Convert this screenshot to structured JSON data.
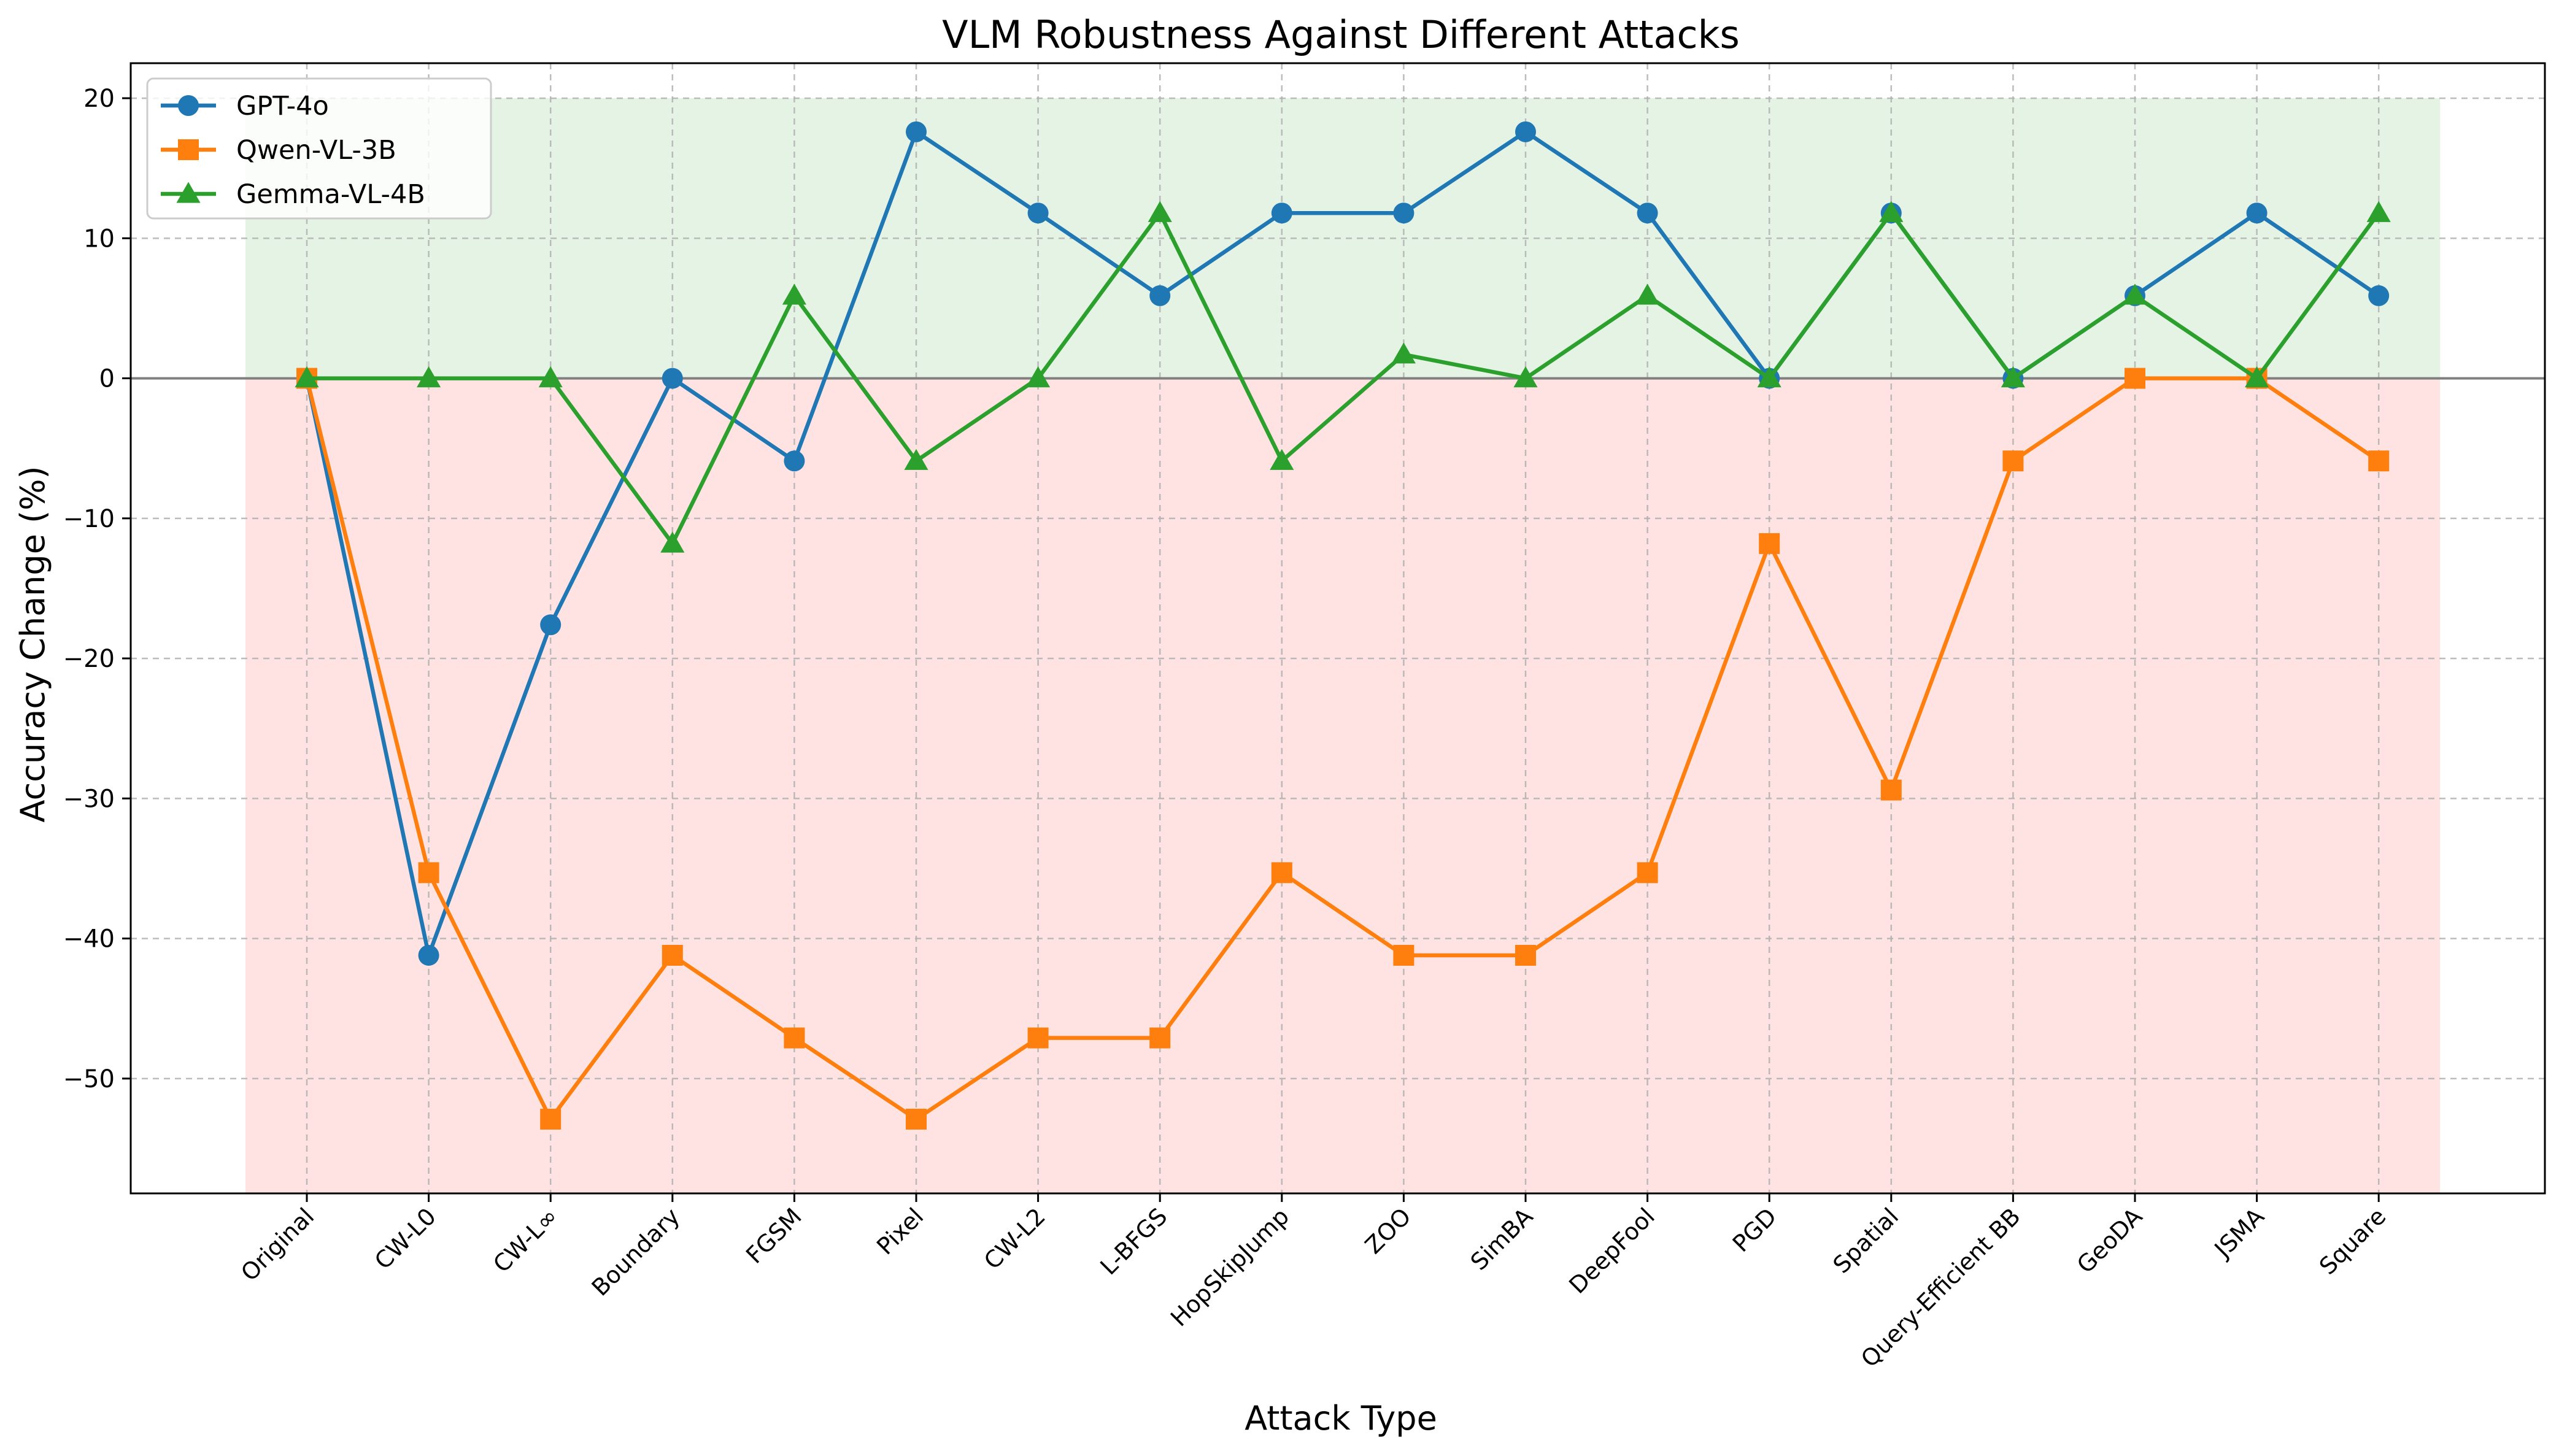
{
  "chart_data": {
    "type": "line",
    "title": "VLM Robustness Against Different Attacks",
    "xlabel": "Attack Type",
    "ylabel": "Accuracy Change (%)",
    "categories": [
      "Original",
      "CW-L0",
      "CW-L∞",
      "Boundary",
      "FGSM",
      "Pixel",
      "CW-L2",
      "L-BFGS",
      "HopSkipJump",
      "ZOO",
      "SimBA",
      "DeepFool",
      "PGD",
      "Spatial",
      "Query-Efficient BB",
      "GeoDA",
      "JSMA",
      "Square"
    ],
    "ylim": [
      -58.2,
      22.5
    ],
    "yticks": [
      20,
      10,
      0,
      -10,
      -20,
      -30,
      -40,
      -50
    ],
    "ytick_labels": [
      "20",
      "10",
      "0",
      "−10",
      "−20",
      "−30",
      "−40",
      "−50"
    ],
    "grid": true,
    "legend_position": "top-left",
    "positive_region": {
      "from": 0,
      "to": 20,
      "color": "#2ca02c",
      "opacity": 0.12
    },
    "negative_region": {
      "from": -58.2,
      "to": 0,
      "color": "#ff0000",
      "opacity": 0.11
    },
    "zero_line_color": "#808080",
    "series": [
      {
        "name": "GPT-4o",
        "color": "#1f77b4",
        "marker": "circle",
        "values": [
          0,
          -41.2,
          -17.6,
          0,
          -5.9,
          17.6,
          11.8,
          5.9,
          11.8,
          11.8,
          17.6,
          11.8,
          0,
          11.8,
          0,
          5.9,
          11.8,
          5.9
        ]
      },
      {
        "name": "Qwen-VL-3B",
        "color": "#ff7f0e",
        "marker": "square",
        "values": [
          0,
          -35.3,
          -52.9,
          -41.2,
          -47.1,
          -52.9,
          -47.1,
          -47.1,
          -35.3,
          -41.2,
          -41.2,
          -35.3,
          -11.8,
          -29.4,
          -5.9,
          0,
          0,
          -5.9
        ]
      },
      {
        "name": "Gemma-VL-4B",
        "color": "#2ca02c",
        "marker": "triangle",
        "values": [
          0,
          0,
          0,
          -11.8,
          5.9,
          -5.9,
          0,
          11.8,
          -5.9,
          1.7,
          0,
          5.9,
          0,
          11.8,
          0,
          5.9,
          0,
          11.8
        ]
      }
    ]
  }
}
